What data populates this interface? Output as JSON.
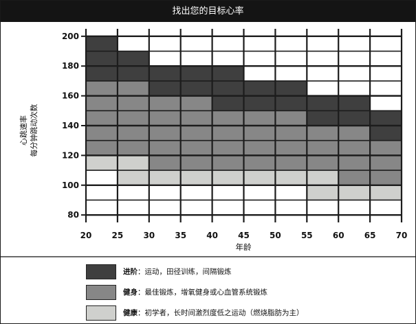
{
  "title": "找出您的目标心率",
  "chart_data": {
    "type": "heatmap",
    "title": "找出您的目标心率",
    "xlabel": "年龄",
    "ylabel_line1": "心跳速率",
    "ylabel_line2": "每分钟跳动次数",
    "x_ticks": [
      "20",
      "25",
      "30",
      "35",
      "40",
      "45",
      "50",
      "55",
      "60",
      "65",
      "70"
    ],
    "y_ticks": [
      "200",
      "180",
      "160",
      "140",
      "120",
      "100",
      "80"
    ],
    "xlim": [
      20,
      70
    ],
    "ylim": [
      75,
      205
    ],
    "grid": true,
    "columns": [
      {
        "age_start": 20,
        "age_end": 25,
        "healthy": [
          110,
          120
        ],
        "fitness": [
          120,
          170
        ],
        "advanced": [
          170,
          200
        ]
      },
      {
        "age_start": 25,
        "age_end": 30,
        "healthy": [
          100,
          120
        ],
        "fitness": [
          120,
          170
        ],
        "advanced": [
          170,
          190
        ]
      },
      {
        "age_start": 30,
        "age_end": 35,
        "healthy": [
          100,
          110
        ],
        "fitness": [
          110,
          160
        ],
        "advanced": [
          160,
          180
        ]
      },
      {
        "age_start": 35,
        "age_end": 40,
        "healthy": [
          100,
          110
        ],
        "fitness": [
          110,
          160
        ],
        "advanced": [
          160,
          180
        ]
      },
      {
        "age_start": 40,
        "age_end": 45,
        "healthy": [
          100,
          110
        ],
        "fitness": [
          110,
          150
        ],
        "advanced": [
          150,
          180
        ]
      },
      {
        "age_start": 45,
        "age_end": 50,
        "healthy": [
          100,
          110
        ],
        "fitness": [
          110,
          150
        ],
        "advanced": [
          150,
          170
        ]
      },
      {
        "age_start": 50,
        "age_end": 55,
        "healthy": [
          100,
          110
        ],
        "fitness": [
          110,
          150
        ],
        "advanced": [
          150,
          170
        ]
      },
      {
        "age_start": 55,
        "age_end": 60,
        "healthy": [
          90,
          110
        ],
        "fitness": [
          110,
          140
        ],
        "advanced": [
          140,
          160
        ]
      },
      {
        "age_start": 60,
        "age_end": 65,
        "healthy": [
          90,
          100
        ],
        "fitness": [
          100,
          140
        ],
        "advanced": [
          140,
          160
        ]
      },
      {
        "age_start": 65,
        "age_end": 70,
        "healthy": [
          90,
          100
        ],
        "fitness": [
          100,
          130
        ],
        "advanced": [
          130,
          150
        ]
      }
    ]
  },
  "colors": {
    "advanced": "#3f3f3f",
    "fitness": "#878787",
    "healthy": "#cfd0cd",
    "grid": "#1c1c1c",
    "background": "#ffffff",
    "title_bar": "#141414"
  },
  "legend": [
    {
      "key": "advanced",
      "term": "进阶",
      "desc": "：运动，田径训练，间隔锻炼"
    },
    {
      "key": "fitness",
      "term": "健身",
      "desc": "：最佳锻炼，增氧健身或心血管系统锻炼"
    },
    {
      "key": "healthy",
      "term": "健康",
      "desc": "：初学者，长时间激烈度低之运动（燃烧脂肪为主）"
    }
  ]
}
